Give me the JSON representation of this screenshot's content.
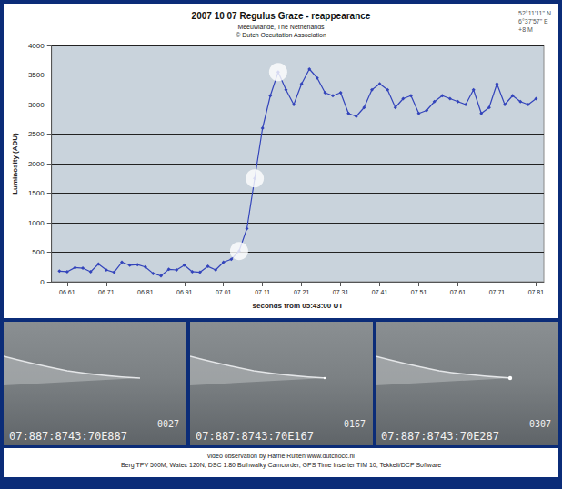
{
  "chart_data": {
    "type": "line",
    "title": "2007 10 07 Regulus Graze - reappearance",
    "subtitle": [
      "Meeuwlande, The Netherlands",
      "© Dutch Occultation Association"
    ],
    "location": [
      "52°11'11\" N",
      "6°37'57\" E",
      "+8 M"
    ],
    "x_label": "seconds from 05:43:00 UT",
    "y_label": "Luminosity (ADU)",
    "x": [
      6.59,
      6.61,
      6.63,
      6.65,
      6.67,
      6.69,
      6.71,
      6.73,
      6.75,
      6.77,
      6.79,
      6.81,
      6.83,
      6.85,
      6.87,
      6.89,
      6.91,
      6.93,
      6.95,
      6.97,
      6.99,
      7.01,
      7.03,
      7.05,
      7.07,
      7.09,
      7.11,
      7.13,
      7.15,
      7.17,
      7.19,
      7.21,
      7.23,
      7.25,
      7.27,
      7.29,
      7.31,
      7.33,
      7.35,
      7.37,
      7.39,
      7.41,
      7.43,
      7.45,
      7.47,
      7.49,
      7.51,
      7.53,
      7.55,
      7.57,
      7.59,
      7.61,
      7.63,
      7.65,
      7.67,
      7.69,
      7.71,
      7.73,
      7.75,
      7.77,
      7.79,
      7.81
    ],
    "values": [
      180,
      170,
      240,
      230,
      170,
      300,
      200,
      160,
      330,
      280,
      290,
      250,
      140,
      100,
      210,
      200,
      280,
      170,
      160,
      260,
      200,
      330,
      380,
      520,
      900,
      1750,
      2600,
      3150,
      3550,
      3250,
      3000,
      3350,
      3600,
      3450,
      3200,
      3150,
      3200,
      2850,
      2800,
      2950,
      3250,
      3350,
      3250,
      2950,
      3100,
      3150,
      2850,
      2900,
      3050,
      3150,
      3100,
      3050,
      3000,
      3250,
      2850,
      2950,
      3350,
      3000,
      3150,
      3050,
      3000,
      3100
    ],
    "color": "#3344bb",
    "marker": "diamond",
    "marked_points": [
      7.05,
      7.09,
      7.15
    ],
    "xlim": [
      6.57,
      7.83
    ],
    "xticks": [
      {
        "value": 6.61,
        "label": "06.61"
      },
      {
        "value": 6.71,
        "label": "06.71"
      },
      {
        "value": 6.81,
        "label": "06.81"
      },
      {
        "value": 6.91,
        "label": "06.91"
      },
      {
        "value": 7.01,
        "label": "07.01"
      },
      {
        "value": 7.11,
        "label": "07.11"
      },
      {
        "value": 7.21,
        "label": "07.21"
      },
      {
        "value": 7.31,
        "label": "07.31"
      },
      {
        "value": 7.41,
        "label": "07.41"
      },
      {
        "value": 7.51,
        "label": "07.51"
      },
      {
        "value": 7.61,
        "label": "07.61"
      },
      {
        "value": 7.71,
        "label": "07.71"
      },
      {
        "value": 7.81,
        "label": "07.81"
      }
    ],
    "ylim": [
      0,
      4000
    ],
    "yticks": [
      0,
      500,
      1000,
      1500,
      2000,
      2500,
      3000,
      3500,
      4000
    ],
    "grid": true
  },
  "frames": [
    {
      "counter": "0027",
      "timestamp": "07:887:8743:70E887"
    },
    {
      "counter": "0167",
      "timestamp": "07:887:8743:70E167"
    },
    {
      "counter": "0307",
      "timestamp": "07:887:8743:70E287"
    }
  ],
  "footer": [
    "video observation by Harrie Rutten www.dutchocc.nl",
    "Berg TPV 500M, Watec 120N, DSC 1:80 Bulhwalky Camcorder, GPS Time Inserter TIM 10, Tekkeli/DCP Software"
  ]
}
